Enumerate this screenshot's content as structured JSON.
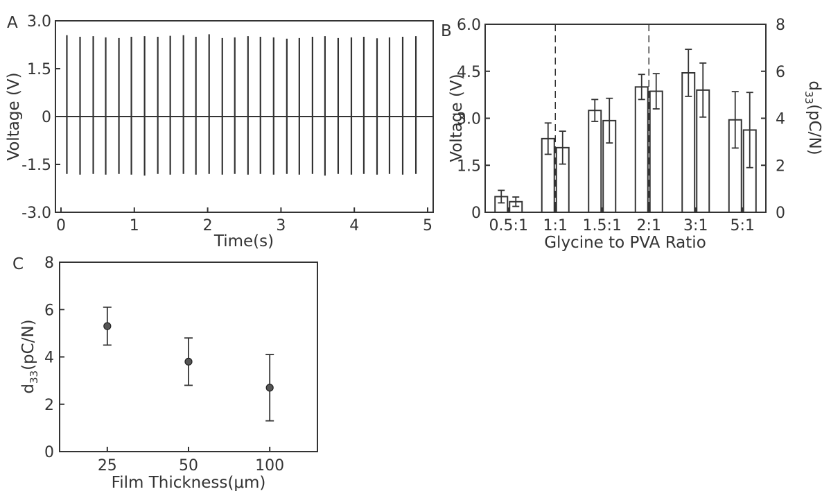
{
  "chart_data": [
    {
      "panel": "A",
      "type": "line",
      "title": "",
      "xlabel": "Time(s)",
      "ylabel": "Voltage (V)",
      "xlim": [
        0,
        5
      ],
      "ylim": [
        -3.0,
        3.0
      ],
      "xticks": [
        "0",
        "1",
        "2",
        "3",
        "4",
        "5"
      ],
      "yticks": [
        "3.0",
        "1.5",
        "0",
        "-1.5",
        "-3.0"
      ],
      "grid": false,
      "baseline": 0,
      "pulses": {
        "t": [
          0.08,
          0.26,
          0.44,
          0.61,
          0.79,
          0.96,
          1.14,
          1.32,
          1.49,
          1.67,
          1.84,
          2.02,
          2.2,
          2.37,
          2.55,
          2.72,
          2.9,
          3.08,
          3.25,
          3.43,
          3.6,
          3.78,
          3.96,
          4.13,
          4.31,
          4.48,
          4.66,
          4.84
        ],
        "vmax": [
          2.55,
          2.5,
          2.52,
          2.48,
          2.46,
          2.5,
          2.52,
          2.5,
          2.53,
          2.55,
          2.5,
          2.58,
          2.46,
          2.48,
          2.52,
          2.5,
          2.48,
          2.44,
          2.46,
          2.5,
          2.52,
          2.46,
          2.48,
          2.5,
          2.45,
          2.48,
          2.5,
          2.52
        ],
        "vmin": [
          -1.8,
          -1.82,
          -1.8,
          -1.82,
          -1.8,
          -1.82,
          -1.85,
          -1.8,
          -1.82,
          -1.8,
          -1.82,
          -1.8,
          -1.82,
          -1.8,
          -1.82,
          -1.8,
          -1.82,
          -1.8,
          -1.82,
          -1.8,
          -1.85,
          -1.8,
          -1.82,
          -1.8,
          -1.82,
          -1.8,
          -1.82,
          -1.8
        ]
      }
    },
    {
      "panel": "B",
      "type": "bar",
      "title": "",
      "xlabel": "Glycine to PVA Ratio",
      "ylabel": "Voltage (V)",
      "ylabel_right": "d33(pC/N)",
      "categories": [
        "0.5:1",
        "1:1",
        "1.5:1",
        "2:1",
        "3:1",
        "5:1"
      ],
      "ylim": [
        0,
        6.0
      ],
      "ylim_right": [
        0,
        8
      ],
      "yticks": [
        "0",
        "1.5",
        "3.0",
        "4.5",
        "6.0"
      ],
      "yticks_right": [
        "0",
        "2",
        "4",
        "6",
        "8"
      ],
      "dashed_at": [
        "1:1",
        "2:1"
      ],
      "series": [
        {
          "axis": "left",
          "values": [
            0.5,
            2.35,
            3.25,
            4.0,
            4.45,
            2.95
          ],
          "errors": [
            0.2,
            0.5,
            0.35,
            0.4,
            0.75,
            0.9
          ]
        },
        {
          "axis": "right",
          "values": [
            0.45,
            2.75,
            3.9,
            5.15,
            5.2,
            3.5
          ],
          "errors": [
            0.2,
            0.7,
            0.95,
            0.75,
            1.15,
            1.6
          ]
        }
      ]
    },
    {
      "panel": "C",
      "type": "scatter",
      "title": "",
      "xlabel": "Film Thickness(μm)",
      "ylabel": "d33(pC/N)",
      "categories": [
        "25",
        "50",
        "100"
      ],
      "ylim": [
        0,
        8
      ],
      "yticks": [
        "0",
        "2",
        "4",
        "6",
        "8"
      ],
      "values": [
        5.3,
        3.8,
        2.7
      ],
      "errors": [
        0.8,
        1.0,
        1.4
      ]
    }
  ]
}
